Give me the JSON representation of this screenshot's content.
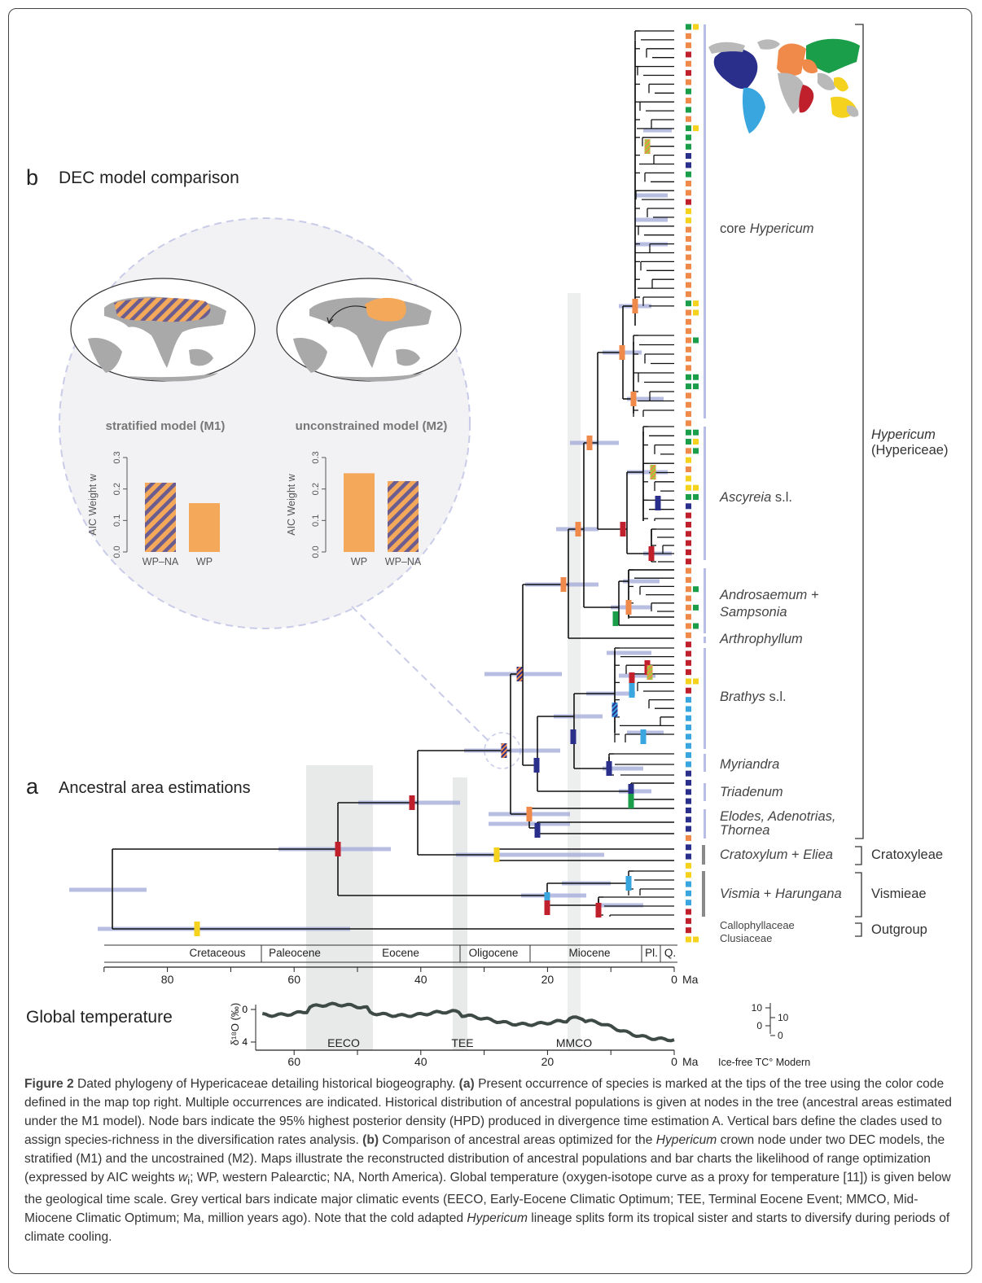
{
  "panel_b": {
    "letter": "b",
    "title": "DEC model comparison",
    "m1_title": "stratified model (M1)",
    "m2_title": "unconstrained model (M2)",
    "ylabel": "AIC Weight w",
    "ylabel_sub": "i",
    "ticks": [
      "0.0",
      "0.1",
      "0.2",
      "0.3"
    ],
    "m1_bars": [
      {
        "label": "WP–NA",
        "value": 0.22,
        "pattern": "hatched"
      },
      {
        "label": "WP",
        "value": 0.155,
        "pattern": "solid"
      }
    ],
    "m2_bars": [
      {
        "label": "WP",
        "value": 0.25,
        "pattern": "solid"
      },
      {
        "label": "WP–NA",
        "value": 0.225,
        "pattern": "hatched"
      }
    ]
  },
  "panel_a": {
    "letter": "a",
    "title": "Ancestral area estimations"
  },
  "clades": {
    "core": {
      "pre": "core ",
      "name": "Hypericum"
    },
    "ascyreia": {
      "name": "Ascyreia",
      "post": " s.l."
    },
    "andro1": "Androsaemum +",
    "andro2": "Sampsonia",
    "arthro": "Arthrophyllum",
    "brathys": {
      "name": "Brathys",
      "post": " s.l."
    },
    "myriandra": "Myriandra",
    "triadenum": "Triadenum",
    "elodes1": "Elodes, Adenotrias,",
    "elodes2": "Thornea",
    "cratox": {
      "a": "Cratoxylum",
      "mid": " + ",
      "b": "Eliea"
    },
    "vismia": {
      "a": "Vismia",
      "mid": " + ",
      "b": "Harungana"
    },
    "callo": "Callophyllaceae",
    "clusia": "Clusiaceae"
  },
  "tribes": {
    "hypericum_name": "Hypericum",
    "hypericum_tribe": "(Hypericeae)",
    "cratoxyleae": "Cratoxyleae",
    "vismieae": "Vismieae",
    "outgroup": "Outgroup"
  },
  "periods": [
    "Cretaceous",
    "Paleocene",
    "Eocene",
    "Oligocene",
    "Miocene",
    "Pl.",
    "Q."
  ],
  "time_axis": {
    "ticks": [
      "80",
      "60",
      "40",
      "20",
      "0"
    ],
    "unit": "Ma",
    "max_ma": 90
  },
  "temperature": {
    "title": "Global temperature",
    "ylabel": "δ¹⁸O (‰)",
    "yticks": [
      "0",
      "4"
    ],
    "xticks": [
      "60",
      "40",
      "20",
      "0"
    ],
    "unit": "Ma",
    "events": [
      "EECO",
      "TEE",
      "MMCO"
    ],
    "right_ticks_a": [
      "10",
      "0"
    ],
    "right_ticks_b": [
      "10",
      "0"
    ],
    "right_label": "Ice-free TC° Modern"
  },
  "colors": {
    "western_palearctic": "#f08a4b",
    "east_asia": "#1a9e4a",
    "south_east_asia": "#f5d21e",
    "africa": "#c0202c",
    "north_america": "#2b2f8c",
    "south_america": "#39a6df",
    "hpd_bar": "#9fa8d8",
    "branch": "#111111"
  },
  "caption": {
    "fig": "Figure 2",
    "t1": " Dated phylogeny of Hypericaceae detailing historical biogeography. ",
    "a_tag": "(a)",
    "t2": " Present occurrence of species is marked at the tips of the tree using the color code defined in the map top right. Multiple occurrences are indicated. Historical distribution of ancestral populations is given at nodes in the tree (ancestral areas estimated under the M1 model). Node bars indicate the 95% highest posterior density (HPD) produced in divergence time estimation A. Vertical bars define the clades used to assign species-richness in the diversification rates analysis. ",
    "b_tag": "(b)",
    "t3": " Comparison of ancestral areas optimized for the ",
    "t3_it": "Hypericum",
    "t4": " crown node under two DEC models, the stratified (M1) and the uncostrained (M2). Maps illustrate the reconstructed distribution of ancestral populations and bar charts the likelihood of range optimization (expressed by AIC weights ",
    "t4_it": "w",
    "t4_sub": "i",
    "t5": "; WP, western Palearctic; NA, North America). Global temperature (oxygen-isotope curve as a proxy for temperature [11]) is given below the geological time scale. Grey vertical bars indicate major climatic events (EECO, Early-Eocene Climatic Optimum; TEE, Terminal Eocene Event; MMCO, Mid-Miocene Climatic Optimum; Ma, million years ago). Note that the cold adapted ",
    "t5_it": "Hypericum",
    "t6": " lineage splits form its tropical sister and starts to diversify during periods of climate cooling."
  }
}
